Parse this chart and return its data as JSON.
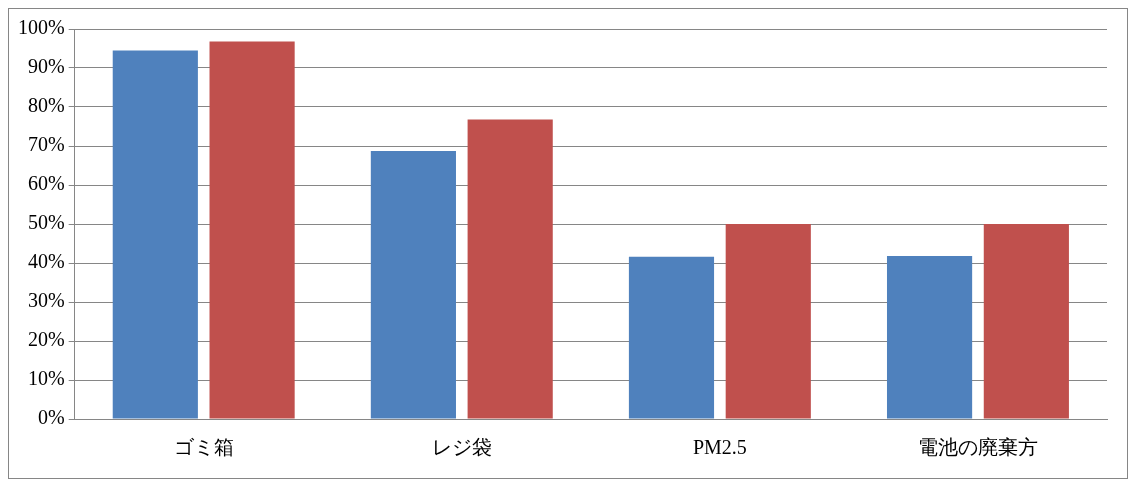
{
  "chart_data": {
    "type": "bar",
    "categories": [
      "ゴミ箱",
      "レジ袋",
      "PM2.5",
      "電池の廃棄方"
    ],
    "series": [
      {
        "color": "#4f81bd",
        "values": [
          94.5,
          68.7,
          41.6,
          41.8
        ]
      },
      {
        "color": "#c0504d",
        "values": [
          96.8,
          76.8,
          50,
          50
        ]
      }
    ],
    "ylim": [
      0,
      100
    ],
    "yticks": [
      {
        "value": 0,
        "label": "0%"
      },
      {
        "value": 10,
        "label": "10%"
      },
      {
        "value": 20,
        "label": "20%"
      },
      {
        "value": 30,
        "label": "30%"
      },
      {
        "value": 40,
        "label": "40%"
      },
      {
        "value": 50,
        "label": "50%"
      },
      {
        "value": 60,
        "label": "60%"
      },
      {
        "value": 70,
        "label": "70%"
      },
      {
        "value": 80,
        "label": "80%"
      },
      {
        "value": 90,
        "label": "90%"
      },
      {
        "value": 100,
        "label": "100%"
      }
    ],
    "grid": "y",
    "legend": false
  }
}
